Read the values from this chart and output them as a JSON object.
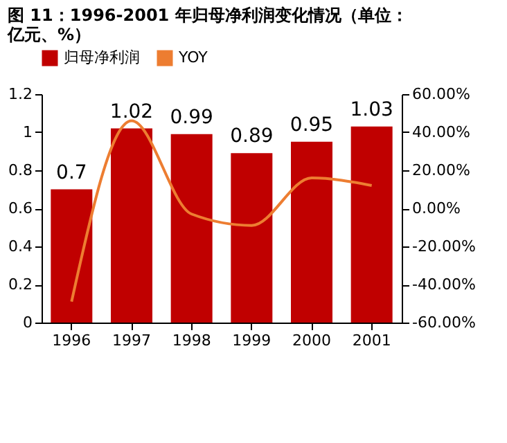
{
  "chart_data": {
    "type": "bar",
    "title": "图 11：1996-2001 年归母净利润变化情况（单位：亿元、%）",
    "categories": [
      "1996",
      "1997",
      "1998",
      "1999",
      "2000",
      "2001"
    ],
    "series": [
      {
        "name": "归母净利润",
        "color": "#c00000",
        "values": [
          0.7,
          1.02,
          0.99,
          0.89,
          0.95,
          1.03
        ],
        "value_labels": [
          "0.7",
          "1.02",
          "0.99",
          "0.89",
          "0.95",
          "1.03"
        ]
      },
      {
        "name": "YOY",
        "type": "line",
        "axis": "y2",
        "color": "#ed7d31",
        "values": [
          -49,
          46,
          -3,
          -9,
          16,
          12
        ]
      }
    ],
    "ylim": [
      0,
      1.2
    ],
    "yticks": [
      0,
      0.2,
      0.4,
      0.6,
      0.8,
      1,
      1.2
    ],
    "y2lim": [
      -60,
      60
    ],
    "y2ticks": [
      {
        "value": -60,
        "label": "-60.00%"
      },
      {
        "value": -40,
        "label": "-40.00%"
      },
      {
        "value": -20,
        "label": "-20.00%"
      },
      {
        "value": 0,
        "label": "0.00%"
      },
      {
        "value": 20,
        "label": "20.00%"
      },
      {
        "value": 40,
        "label": "40.00%"
      },
      {
        "value": 60,
        "label": "60.00%"
      }
    ],
    "legend": "top",
    "grid": false
  }
}
